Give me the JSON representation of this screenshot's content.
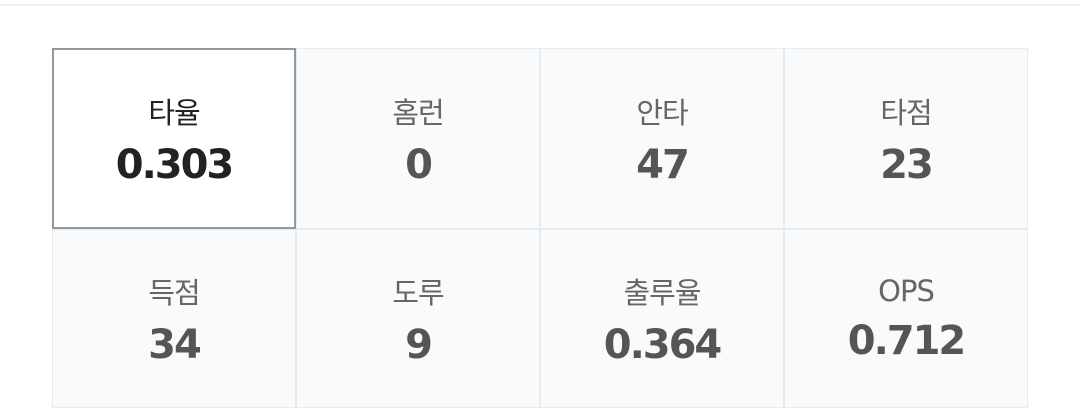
{
  "stats": [
    {
      "label": "타율",
      "value": "0.303",
      "selected": true
    },
    {
      "label": "홈런",
      "value": "0"
    },
    {
      "label": "안타",
      "value": "47"
    },
    {
      "label": "타점",
      "value": "23"
    },
    {
      "label": "득점",
      "value": "34"
    },
    {
      "label": "도루",
      "value": "9"
    },
    {
      "label": "출루율",
      "value": "0.364"
    },
    {
      "label": "OPS",
      "value": "0.712"
    }
  ]
}
